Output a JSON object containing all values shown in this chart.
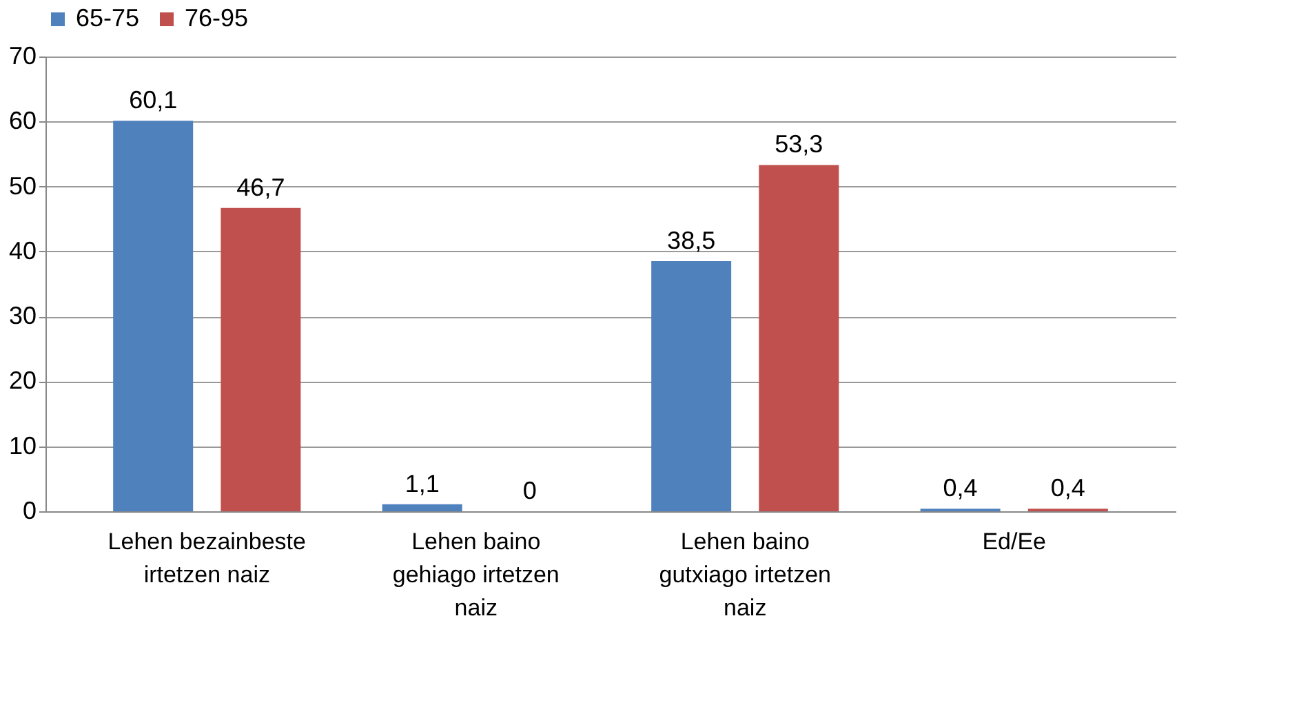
{
  "chart_data": {
    "type": "bar",
    "categories": [
      "Lehen bezainbeste irtetzen naiz",
      "Lehen baino gehiago irtetzen naiz",
      "Lehen baino gutxiago irtetzen naiz",
      "Ed/Ee"
    ],
    "series": [
      {
        "name": "65-75",
        "color": "#4f81bd",
        "values": [
          60.1,
          1.1,
          38.5,
          0.4
        ]
      },
      {
        "name": "76-95",
        "color": "#c0504d",
        "values": [
          46.7,
          0,
          53.3,
          0.4
        ]
      }
    ],
    "value_labels": [
      [
        "60,1",
        "1,1",
        "38,5",
        "0,4"
      ],
      [
        "46,7",
        "0",
        "53,3",
        "0,4"
      ]
    ],
    "ylim": [
      0,
      70
    ],
    "yticks": [
      0,
      10,
      20,
      30,
      40,
      50,
      60,
      70
    ],
    "grid": "y",
    "legend": "top"
  }
}
